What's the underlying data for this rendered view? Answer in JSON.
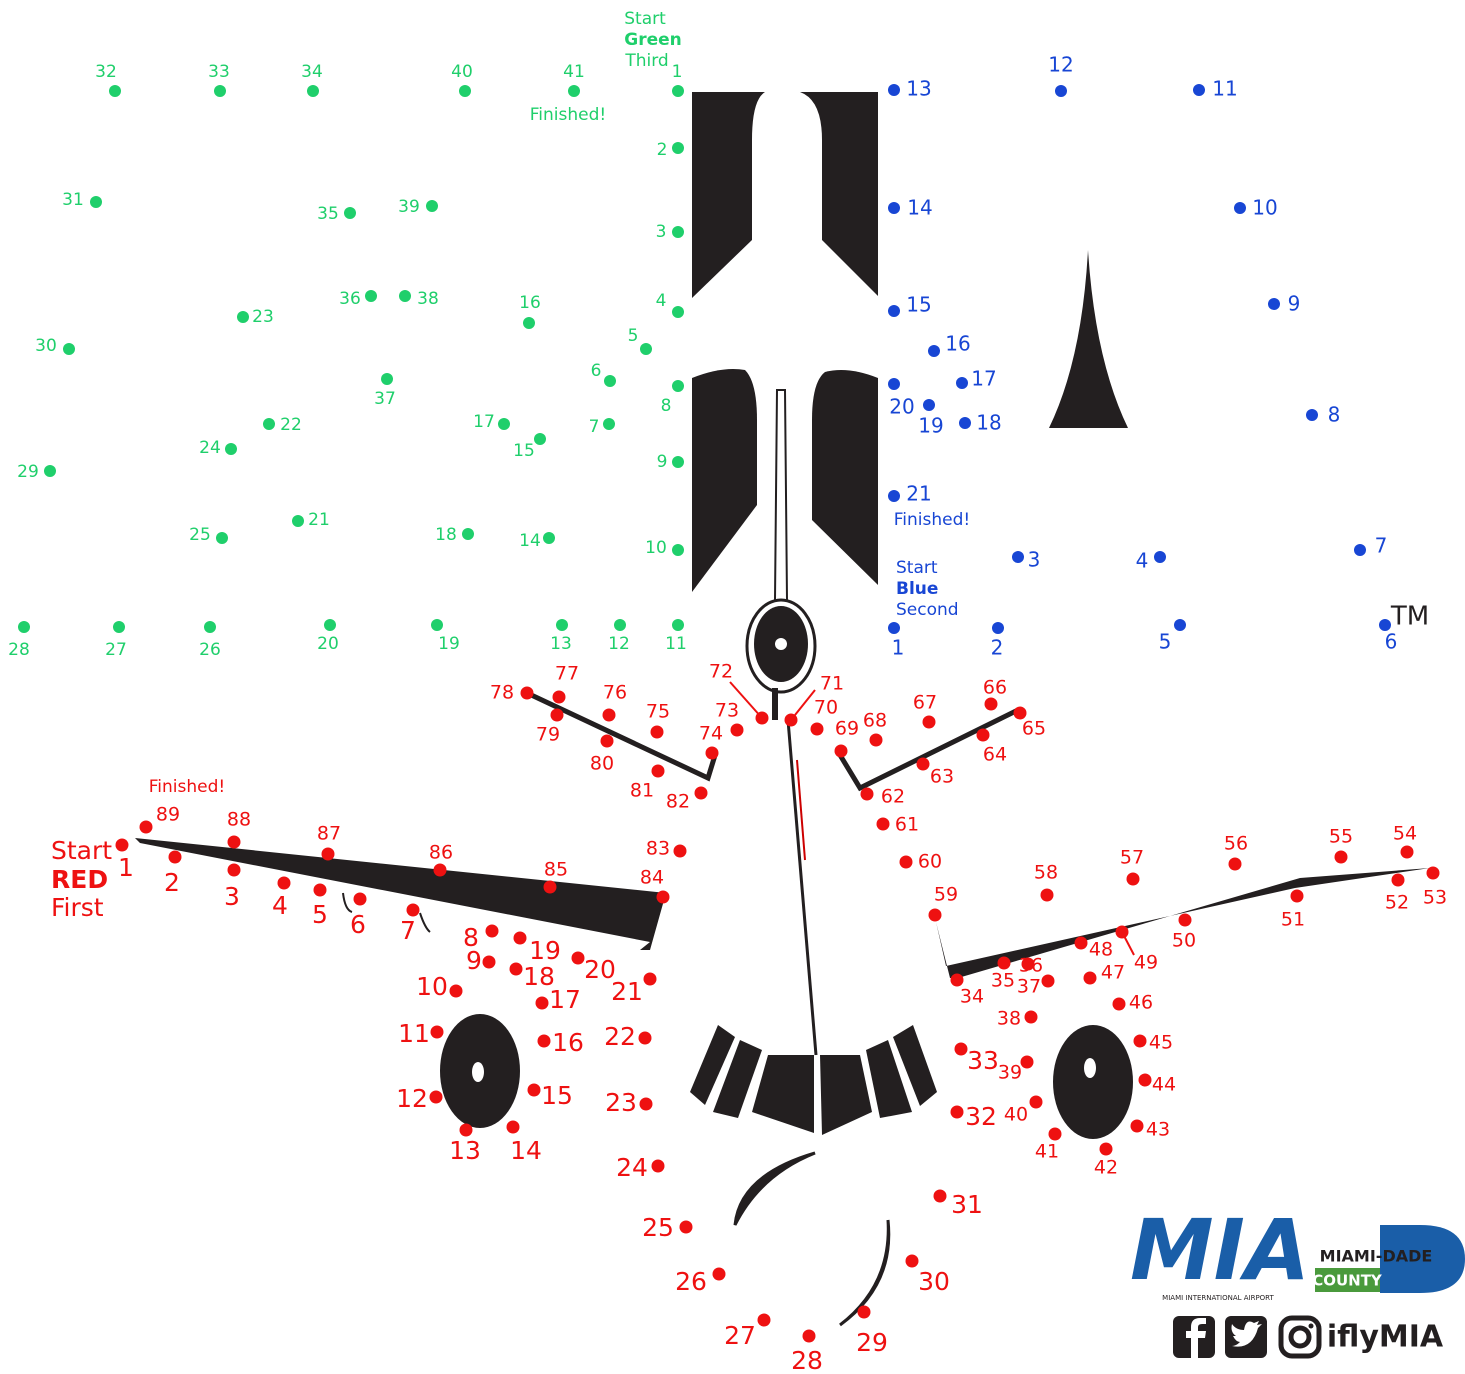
{
  "green": {
    "start": "Start",
    "color_word": "Green",
    "order": "Third",
    "finished": "Finished!",
    "dots": [
      1,
      2,
      3,
      4,
      5,
      6,
      7,
      8,
      9,
      10,
      11,
      12,
      13,
      14,
      15,
      16,
      17,
      18,
      19,
      20,
      21,
      22,
      23,
      24,
      25,
      26,
      27,
      28,
      29,
      30,
      31,
      32,
      33,
      34,
      35,
      36,
      37,
      38,
      39,
      40,
      41
    ]
  },
  "blue": {
    "start": "Start",
    "color_word": "Blue",
    "order": "Second",
    "finished": "Finished!",
    "dots": [
      1,
      2,
      3,
      4,
      5,
      6,
      7,
      8,
      9,
      10,
      11,
      12,
      13,
      14,
      15,
      16,
      17,
      18,
      19,
      20,
      21
    ]
  },
  "red": {
    "start": "Start",
    "color_word": "RED",
    "order": "First",
    "finished": "Finished!",
    "dots": [
      1,
      2,
      3,
      4,
      5,
      6,
      7,
      8,
      9,
      10,
      11,
      12,
      13,
      14,
      15,
      16,
      17,
      18,
      19,
      20,
      21,
      22,
      23,
      24,
      25,
      26,
      27,
      28,
      29,
      30,
      31,
      32,
      33,
      34,
      35,
      36,
      37,
      38,
      39,
      40,
      41,
      42,
      43,
      44,
      45,
      46,
      47,
      48,
      49,
      50,
      51,
      52,
      53,
      54,
      55,
      56,
      57,
      58,
      59,
      60,
      61,
      62,
      63,
      64,
      65,
      66,
      67,
      68,
      69,
      70,
      71,
      72,
      73,
      74,
      75,
      76,
      77,
      78,
      79,
      80,
      81,
      82,
      83,
      84,
      85,
      86,
      87,
      88,
      89
    ]
  },
  "trademark": "TM",
  "logo": {
    "name": "MIA",
    "subtitle": "MIAMI INTERNATIONAL AIRPORT",
    "county_name": "MIAMI-DADE",
    "county": "COUNTY"
  },
  "social": {
    "handle": "iflyMIA"
  }
}
